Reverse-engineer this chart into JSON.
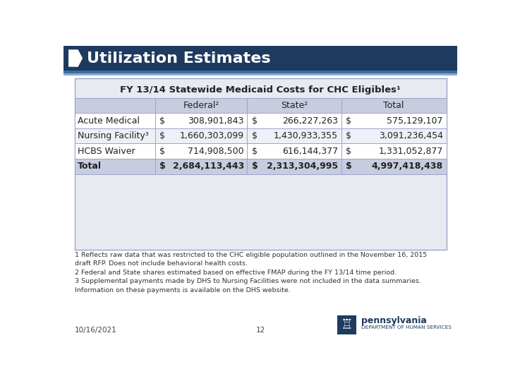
{
  "title": "Utilization Estimates",
  "title_bg": "#1e3a5f",
  "title_color": "#ffffff",
  "table_title": "FY 13/14 Statewide Medicaid Costs for CHC Eligibles¹",
  "col_headers": [
    "Federal²",
    "State²",
    "Total"
  ],
  "row_labels": [
    "Acute Medical",
    "Nursing Facility³",
    "HCBS Waiver",
    "Total"
  ],
  "data": [
    [
      "$",
      "308,901,843",
      "$",
      "266,227,263",
      "$",
      "575,129,107"
    ],
    [
      "$",
      "1,660,303,099",
      "$",
      "1,430,933,355",
      "$",
      "3,091,236,454"
    ],
    [
      "$",
      "714,908,500",
      "$",
      "616,144,377",
      "$",
      "1,331,052,877"
    ],
    [
      "$",
      "2,684,113,443",
      "$",
      "2,313,304,995",
      "$",
      "4,997,418,438"
    ]
  ],
  "row_bold": [
    false,
    false,
    false,
    true
  ],
  "footnotes": "1 Reflects raw data that was restricted to the CHC eligible population outlined in the November 16, 2015\ndraft RFP. Does not include behavioral health costs.\n2 Federal and State shares estimated based on effective FMAP during the FY 13/14 time period.\n3 Supplemental payments made by DHS to Nursing Facilities were not included in the data summaries.\nInformation on these payments is available on the DHS website.",
  "footer_left": "10/16/2021",
  "footer_center": "12",
  "table_outer_bg": "#e8eaf2",
  "header_bg": "#c8cce0",
  "row_bgs": [
    "#ffffff",
    "#eef0f7",
    "#ffffff",
    "#c8cce0"
  ],
  "border_color": "#9aa5c8",
  "text_color": "#222222",
  "accent_line1": "#3a6ea5",
  "accent_line2": "#8aaace",
  "logo_blue": "#1e3a5f"
}
